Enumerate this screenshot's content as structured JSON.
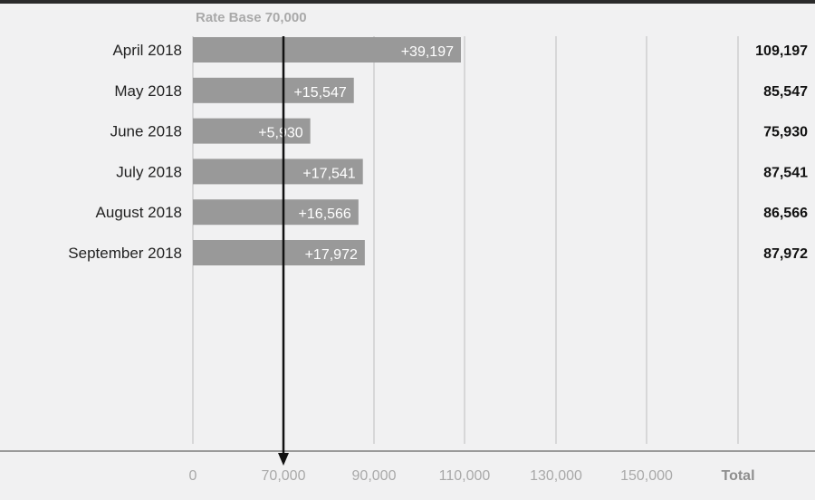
{
  "chart_data": {
    "type": "bar",
    "orientation": "horizontal",
    "reference_line": {
      "label": "Rate Base 70,000",
      "value": 70000
    },
    "categories": [
      "April 2018",
      "May 2018",
      "June 2018",
      "July 2018",
      "August 2018",
      "September 2018"
    ],
    "values": [
      109197,
      85547,
      75930,
      87541,
      86566,
      87972
    ],
    "increments": [
      39197,
      15547,
      5930,
      17541,
      16566,
      17972
    ],
    "increment_labels": [
      "+39,197",
      "+15,547",
      "+5,930",
      "+17,541",
      "+16,566",
      "+17,972"
    ],
    "totals": [
      "109,197",
      "85,547",
      "75,930",
      "87,541",
      "86,566",
      "87,972"
    ],
    "x_ticks": [
      {
        "value": 0,
        "label": "0"
      },
      {
        "value": 70000,
        "label": "70,000"
      },
      {
        "value": 90000,
        "label": "90,000"
      },
      {
        "value": 110000,
        "label": "110,000"
      },
      {
        "value": 130000,
        "label": "130,000"
      },
      {
        "value": 150000,
        "label": "150,000"
      }
    ],
    "total_column_label": "Total",
    "grid": true,
    "colors": {
      "bar": "#999999",
      "grid": "#bdbdbd",
      "reference": "#111111",
      "background": "#f1f1f2"
    }
  }
}
